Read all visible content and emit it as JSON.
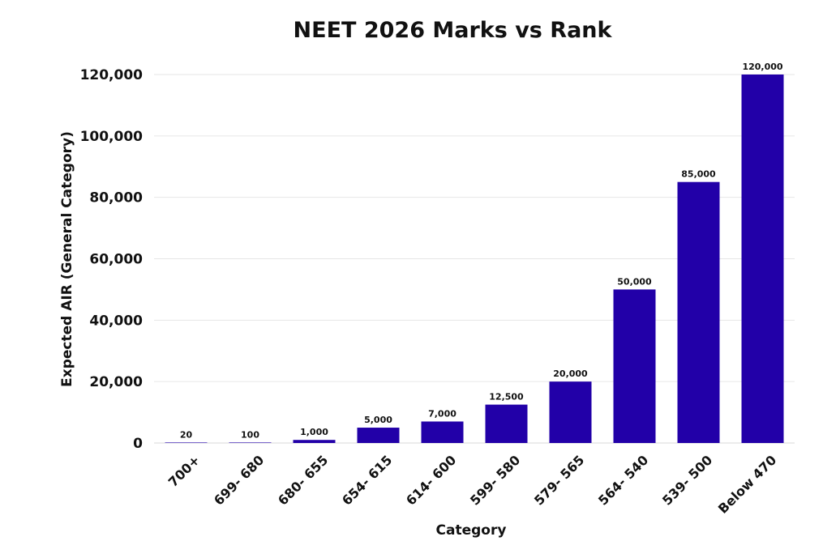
{
  "chart_data": {
    "type": "bar",
    "title": "NEET 2026 Marks vs Rank",
    "xlabel": "Category",
    "ylabel": "Expected AIR (General Category)",
    "categories": [
      "700+",
      "699- 680",
      "680- 655",
      "654- 615",
      "614- 600",
      "599- 580",
      "579- 565",
      "564- 540",
      "539- 500",
      "Below 470"
    ],
    "values": [
      20,
      100,
      1000,
      5000,
      7000,
      12500,
      20000,
      50000,
      85000,
      120000
    ],
    "value_labels": [
      "20",
      "100",
      "1,000",
      "5,000",
      "7,000",
      "12,500",
      "20,000",
      "50,000",
      "85,000",
      "120,000"
    ],
    "ylim": [
      0,
      120000
    ],
    "yticks": [
      0,
      20000,
      40000,
      60000,
      80000,
      100000,
      120000
    ],
    "ytick_labels": [
      "0",
      "20,000",
      "40,000",
      "60,000",
      "80,000",
      "100,000",
      "120,000"
    ],
    "grid": true,
    "legend": "none",
    "bar_color": "#2200a8"
  }
}
